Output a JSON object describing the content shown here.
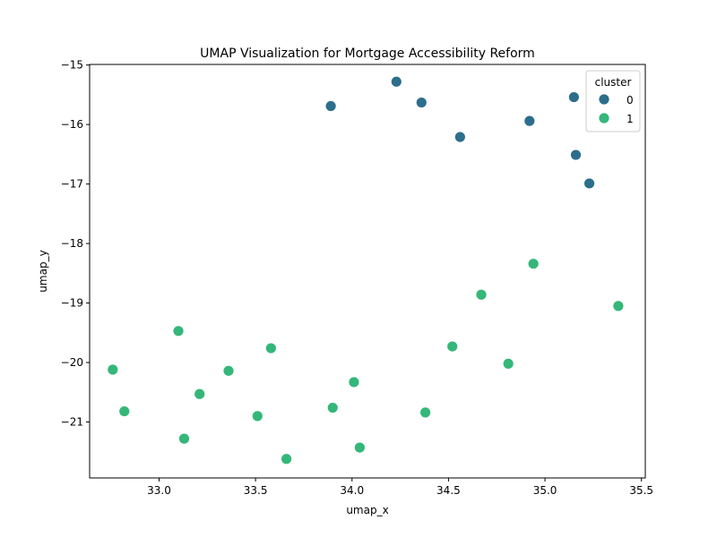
{
  "chart_data": {
    "type": "scatter",
    "title": "UMAP Visualization for Mortgage Accessibility Reform",
    "xlabel": "umap_x",
    "ylabel": "umap_y",
    "xlim": [
      32.64,
      35.52
    ],
    "ylim": [
      -21.94,
      -14.99
    ],
    "xticks": [
      "33.0",
      "33.5",
      "34.0",
      "34.5",
      "35.0",
      "35.5"
    ],
    "yticks": [
      "−15",
      "−16",
      "−17",
      "−18",
      "−19",
      "−20",
      "−21"
    ],
    "xtick_values": [
      33.0,
      33.5,
      34.0,
      34.5,
      35.0,
      35.5
    ],
    "ytick_values": [
      -15,
      -16,
      -17,
      -18,
      -19,
      -20,
      -21
    ],
    "grid": false,
    "legend": {
      "title": "cluster",
      "placement": "top-right",
      "entries": [
        {
          "label": "0",
          "color": "#2c6e8c"
        },
        {
          "label": "1",
          "color": "#34b779"
        }
      ]
    },
    "series": [
      {
        "name": "0",
        "color": "#2c6e8c",
        "points": [
          [
            33.89,
            -15.69
          ],
          [
            34.23,
            -15.28
          ],
          [
            34.36,
            -15.63
          ],
          [
            34.56,
            -16.21
          ],
          [
            34.92,
            -15.94
          ],
          [
            35.15,
            -15.54
          ],
          [
            35.16,
            -16.51
          ],
          [
            35.23,
            -16.99
          ]
        ]
      },
      {
        "name": "1",
        "color": "#34b779",
        "points": [
          [
            32.76,
            -20.12
          ],
          [
            32.82,
            -20.82
          ],
          [
            33.1,
            -19.47
          ],
          [
            33.13,
            -21.28
          ],
          [
            33.21,
            -20.53
          ],
          [
            33.36,
            -20.14
          ],
          [
            33.51,
            -20.9
          ],
          [
            33.58,
            -19.76
          ],
          [
            33.66,
            -21.62
          ],
          [
            33.9,
            -20.76
          ],
          [
            34.01,
            -20.33
          ],
          [
            34.04,
            -21.43
          ],
          [
            34.38,
            -20.84
          ],
          [
            34.52,
            -19.73
          ],
          [
            34.67,
            -18.86
          ],
          [
            34.81,
            -20.02
          ],
          [
            34.94,
            -18.34
          ],
          [
            35.38,
            -19.05
          ]
        ]
      }
    ]
  }
}
